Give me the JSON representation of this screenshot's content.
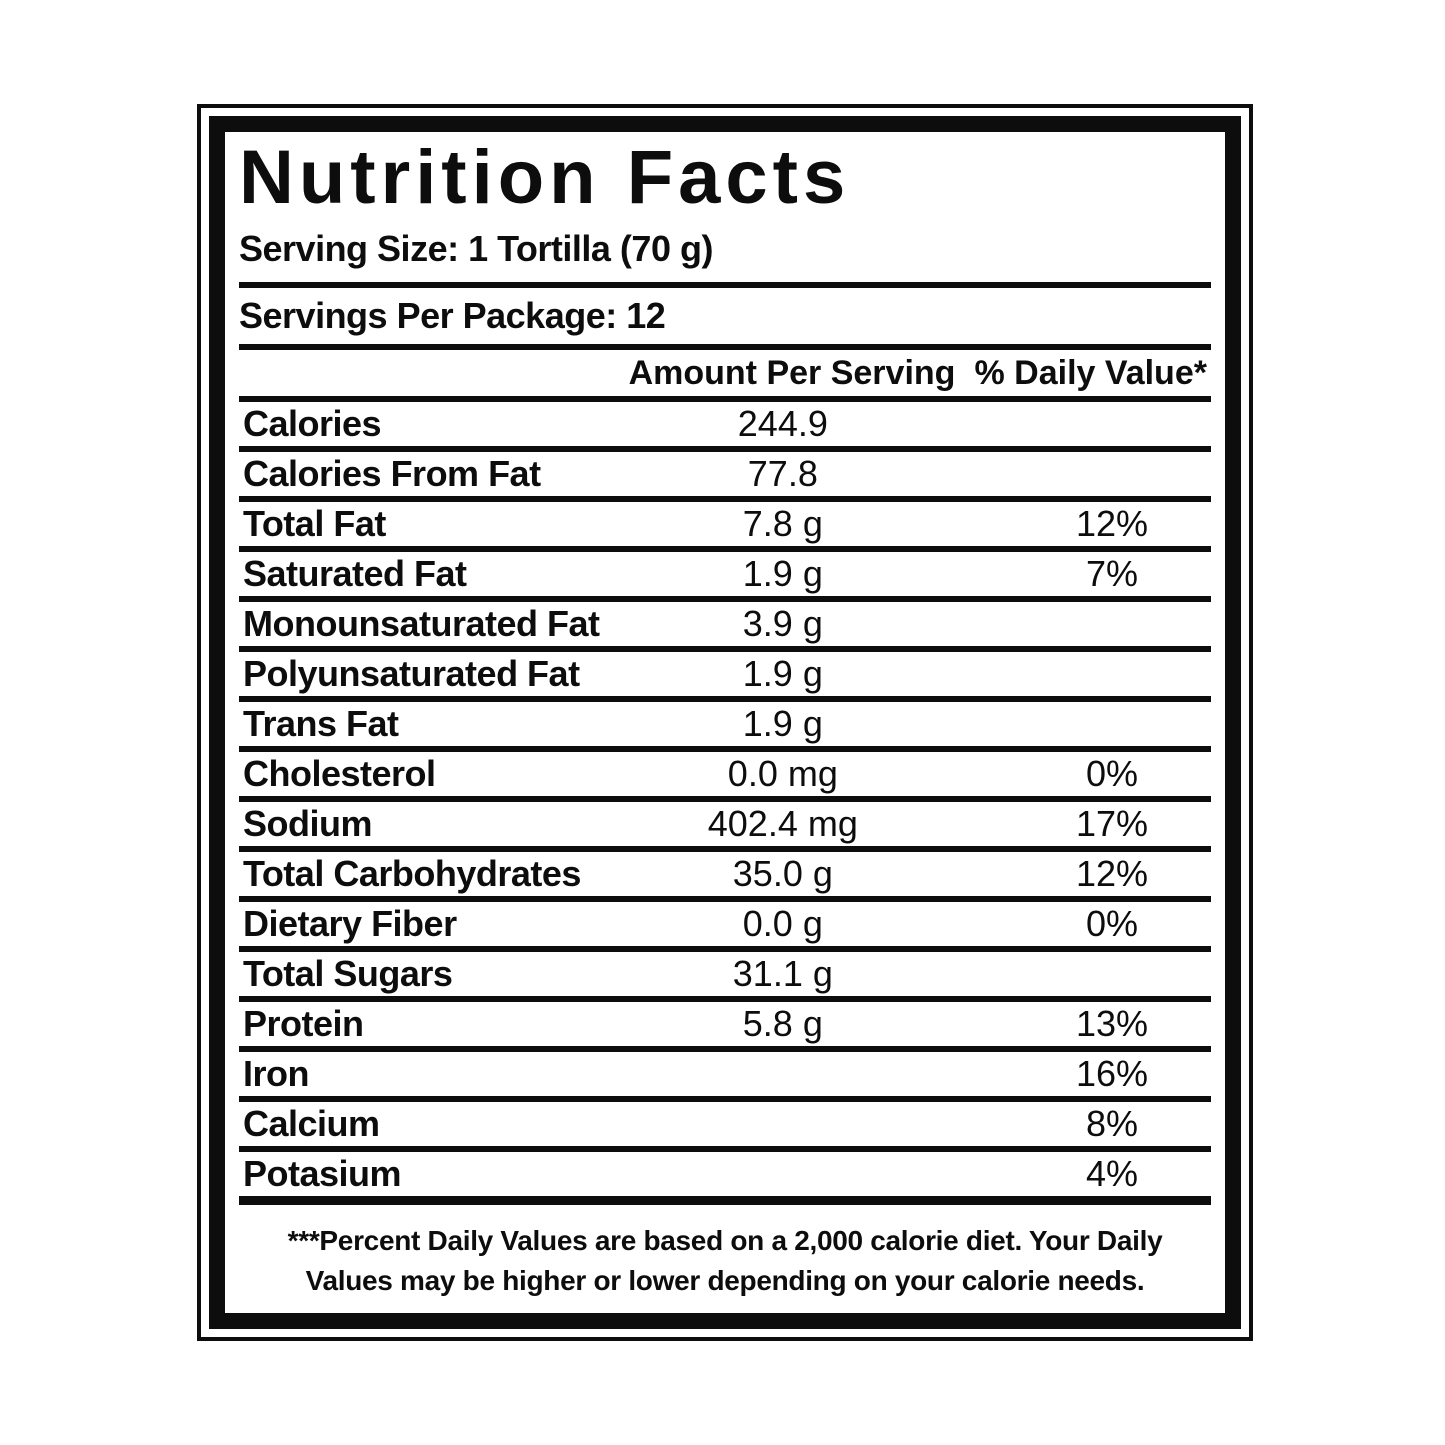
{
  "colors": {
    "ink": "#0d0d0d",
    "background": "#ffffff"
  },
  "label": {
    "title": "Nutrition Facts",
    "serving_size": "Serving Size: 1 Tortilla (70 g)",
    "servings_per_package": "Servings Per Package: 12",
    "table": {
      "headers": {
        "amount": "Amount Per Serving",
        "daily_value": "% Daily Value*"
      },
      "rows": [
        {
          "label": "Calories",
          "amount": "244.9",
          "daily_value": ""
        },
        {
          "label": "Calories From Fat",
          "amount": "77.8",
          "daily_value": ""
        },
        {
          "label": "Total Fat",
          "amount": "7.8 g",
          "daily_value": "12%"
        },
        {
          "label": "Saturated Fat",
          "amount": "1.9 g",
          "daily_value": "7%"
        },
        {
          "label": "Monounsaturated Fat",
          "amount": "3.9 g",
          "daily_value": ""
        },
        {
          "label": "Polyunsaturated Fat",
          "amount": "1.9 g",
          "daily_value": ""
        },
        {
          "label": "Trans Fat",
          "amount": "1.9 g",
          "daily_value": ""
        },
        {
          "label": "Cholesterol",
          "amount": "0.0 mg",
          "daily_value": "0%"
        },
        {
          "label": "Sodium",
          "amount": "402.4 mg",
          "daily_value": "17%"
        },
        {
          "label": "Total Carbohydrates",
          "amount": "35.0 g",
          "daily_value": "12%"
        },
        {
          "label": "Dietary Fiber",
          "amount": "0.0 g",
          "daily_value": "0%"
        },
        {
          "label": "Total Sugars",
          "amount": "31.1 g",
          "daily_value": ""
        },
        {
          "label": "Protein",
          "amount": "5.8 g",
          "daily_value": "13%"
        },
        {
          "label": "Iron",
          "amount": "",
          "daily_value": "16%"
        },
        {
          "label": "Calcium",
          "amount": "",
          "daily_value": "8%"
        },
        {
          "label": "Potasium",
          "amount": "",
          "daily_value": "4%"
        }
      ]
    },
    "footnote": {
      "line1": "***Percent Daily Values are based on a 2,000 calorie diet. Your Daily",
      "line2": "Values may be higher or lower depending on your calorie needs."
    }
  }
}
